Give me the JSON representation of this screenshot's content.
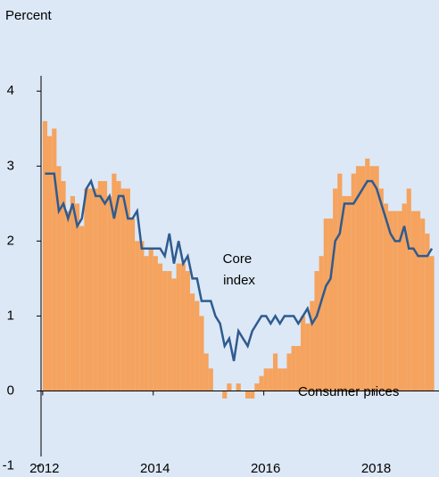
{
  "chart_data": {
    "type": "bar",
    "y_label": "Percent",
    "annotations": [
      "Core index",
      "Consumer prices"
    ],
    "x": [
      2012,
      2012.083,
      2012.167,
      2012.25,
      2012.333,
      2012.417,
      2012.5,
      2012.583,
      2012.667,
      2012.75,
      2012.833,
      2012.917,
      2013,
      2013.083,
      2013.167,
      2013.25,
      2013.333,
      2013.417,
      2013.5,
      2013.583,
      2013.667,
      2013.75,
      2013.833,
      2013.917,
      2014,
      2014.083,
      2014.167,
      2014.25,
      2014.333,
      2014.417,
      2014.5,
      2014.583,
      2014.667,
      2014.75,
      2014.833,
      2014.917,
      2015,
      2015.083,
      2015.167,
      2015.25,
      2015.333,
      2015.417,
      2015.5,
      2015.583,
      2015.667,
      2015.75,
      2015.833,
      2015.917,
      2016,
      2016.083,
      2016.167,
      2016.25,
      2016.333,
      2016.417,
      2016.5,
      2016.583,
      2016.667,
      2016.75,
      2016.833,
      2016.917,
      2017,
      2017.083,
      2017.167,
      2017.25,
      2017.333,
      2017.417,
      2017.5,
      2017.583,
      2017.667,
      2017.75,
      2017.833,
      2017.917,
      2018,
      2018.083,
      2018.167,
      2018.25,
      2018.333,
      2018.417,
      2018.5,
      2018.583,
      2018.667,
      2018.75,
      2018.833,
      2018.917,
      2019
    ],
    "series": [
      {
        "name": "Consumer prices",
        "type": "bar",
        "color": "#f5a35e",
        "values": [
          3.6,
          3.4,
          3.5,
          3.0,
          2.8,
          2.4,
          2.6,
          2.5,
          2.2,
          2.7,
          2.7,
          2.7,
          2.8,
          2.8,
          2.6,
          2.9,
          2.8,
          2.7,
          2.7,
          2.3,
          2.0,
          2.0,
          1.8,
          1.9,
          1.8,
          1.7,
          1.6,
          1.6,
          1.5,
          1.7,
          1.7,
          1.6,
          1.3,
          1.2,
          1.0,
          0.5,
          0.3,
          0.0,
          0.0,
          -0.1,
          0.1,
          0.0,
          0.1,
          0.0,
          -0.1,
          -0.1,
          0.1,
          0.2,
          0.3,
          0.3,
          0.5,
          0.3,
          0.3,
          0.5,
          0.6,
          0.6,
          1.0,
          0.9,
          1.2,
          1.6,
          1.8,
          2.3,
          2.3,
          2.7,
          2.9,
          2.6,
          2.6,
          2.9,
          3.0,
          3.0,
          3.1,
          3.0,
          3.0,
          2.7,
          2.5,
          2.4,
          2.4,
          2.4,
          2.5,
          2.7,
          2.4,
          2.4,
          2.3,
          2.1,
          1.8
        ]
      },
      {
        "name": "Core index",
        "type": "line",
        "color": "#2f5b8f",
        "values": [
          2.9,
          2.9,
          2.9,
          2.4,
          2.5,
          2.3,
          2.5,
          2.2,
          2.3,
          2.7,
          2.8,
          2.6,
          2.6,
          2.5,
          2.6,
          2.3,
          2.6,
          2.6,
          2.3,
          2.3,
          2.4,
          1.9,
          1.9,
          1.9,
          1.9,
          1.9,
          1.8,
          2.1,
          1.7,
          2.0,
          1.7,
          1.8,
          1.5,
          1.5,
          1.2,
          1.2,
          1.2,
          1.0,
          0.9,
          0.6,
          0.7,
          0.4,
          0.8,
          0.7,
          0.6,
          0.8,
          0.9,
          1.0,
          1.0,
          0.9,
          1.0,
          0.9,
          1.0,
          1.0,
          1.0,
          0.9,
          1.0,
          1.1,
          0.9,
          1.0,
          1.2,
          1.4,
          1.5,
          2.0,
          2.1,
          2.5,
          2.5,
          2.5,
          2.6,
          2.7,
          2.8,
          2.8,
          2.7,
          2.5,
          2.3,
          2.1,
          2.0,
          2.0,
          2.2,
          1.9,
          1.9,
          1.8,
          1.8,
          1.8,
          1.9
        ]
      }
    ],
    "xlim": [
      2011.97,
      2019.17
    ],
    "xticks": [
      2012,
      2014,
      2016,
      2018
    ],
    "ylim": [
      -1.1,
      4.3
    ],
    "yticks": [
      4,
      3,
      2,
      1,
      0,
      -1
    ]
  }
}
